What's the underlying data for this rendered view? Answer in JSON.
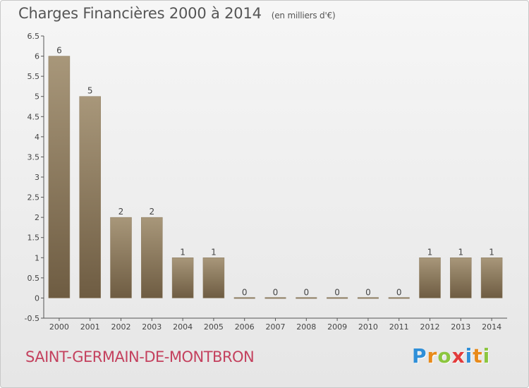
{
  "chart_data": {
    "type": "bar",
    "title": "Charges Financières 2000 à 2014",
    "unit_label": "(en milliers d'€)",
    "categories": [
      "2000",
      "2001",
      "2002",
      "2003",
      "2004",
      "2005",
      "2006",
      "2007",
      "2008",
      "2009",
      "2010",
      "2011",
      "2012",
      "2013",
      "2014"
    ],
    "values": [
      6,
      5,
      2,
      2,
      1,
      1,
      0,
      0,
      0,
      0,
      0,
      0,
      1,
      1,
      1
    ],
    "data_labels": [
      "6",
      "5",
      "2",
      "2",
      "1",
      "1",
      "0",
      "0",
      "0",
      "0",
      "0",
      "0",
      "1",
      "1",
      "1"
    ],
    "yticks": [
      "6.5",
      "6",
      "5.5",
      "5",
      "4.5",
      "4",
      "3.5",
      "3",
      "2.5",
      "2",
      "1.5",
      "1",
      "0.5",
      "0",
      "-0.5"
    ],
    "ytick_values": [
      6.5,
      6,
      5.5,
      5,
      4.5,
      4,
      3.5,
      3,
      2.5,
      2,
      1.5,
      1,
      0.5,
      0,
      -0.5
    ],
    "ylim": [
      -0.5,
      6.5
    ],
    "grid": false,
    "bar_color_top": "#a8977a",
    "bar_color_bottom": "#6e5c42"
  },
  "commune": "SAINT-GERMAIN-DE-MONTBRON",
  "brand": {
    "letters": [
      "P",
      "r",
      "o",
      "x",
      "i",
      "t",
      "i"
    ],
    "colors": [
      "#2f8fd8",
      "#e88a1a",
      "#8cc63f",
      "#e23b3b",
      "#2f8fd8",
      "#e88a1a",
      "#8cc63f"
    ]
  }
}
